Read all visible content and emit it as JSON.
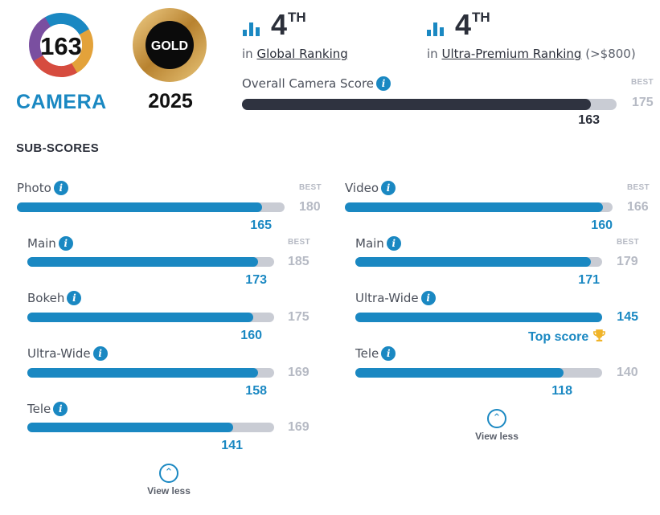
{
  "badges": {
    "camera_score": "163",
    "camera_label": "CAMERA",
    "gold_label": "GOLD",
    "gold_year": "2025"
  },
  "rankings": {
    "global": {
      "rank": "4",
      "suffix": "TH",
      "prefix": "in",
      "link": "Global Ranking",
      "extra": ""
    },
    "segment": {
      "rank": "4",
      "suffix": "TH",
      "prefix": "in",
      "link": "Ultra-Premium Ranking",
      "extra": "(>$800)"
    }
  },
  "overall": {
    "label": "Overall Camera Score",
    "best_label": "BEST",
    "best": "175",
    "score": "163",
    "fraction": 0.9314
  },
  "subscores_title": "SUB-SCORES",
  "left": {
    "photo": {
      "label": "Photo",
      "best_label": "BEST",
      "best": "180",
      "score": "165",
      "fraction": 0.9167
    },
    "main": {
      "label": "Main",
      "best_label": "BEST",
      "best": "185",
      "score": "173",
      "fraction": 0.9351
    },
    "bokeh": {
      "label": "Bokeh",
      "best": "175",
      "score": "160",
      "fraction": 0.9143
    },
    "ultrawide": {
      "label": "Ultra-Wide",
      "best": "169",
      "score": "158",
      "fraction": 0.9349
    },
    "tele": {
      "label": "Tele",
      "best": "169",
      "score": "141",
      "fraction": 0.8343
    },
    "view_less": "View less"
  },
  "right": {
    "video": {
      "label": "Video",
      "best_label": "BEST",
      "best": "166",
      "score": "160",
      "fraction": 0.9639
    },
    "main": {
      "label": "Main",
      "best_label": "BEST",
      "best": "179",
      "score": "171",
      "fraction": 0.9553
    },
    "ultrawide": {
      "label": "Ultra-Wide",
      "score": "145",
      "top_score": "Top score",
      "fraction": 1.0
    },
    "tele": {
      "label": "Tele",
      "best": "140",
      "score": "118",
      "fraction": 0.8429
    },
    "view_less": "View less"
  },
  "colors": {
    "accent": "#1a88c2",
    "track": "#c9ccd4",
    "dark": "#2f3340",
    "gold": "#c9963f",
    "trophy": "#f0b429"
  },
  "icons": {
    "info": "info-icon",
    "rank": "bar-chart-icon",
    "trophy": "trophy-icon",
    "chevron": "chevron-up-icon"
  }
}
